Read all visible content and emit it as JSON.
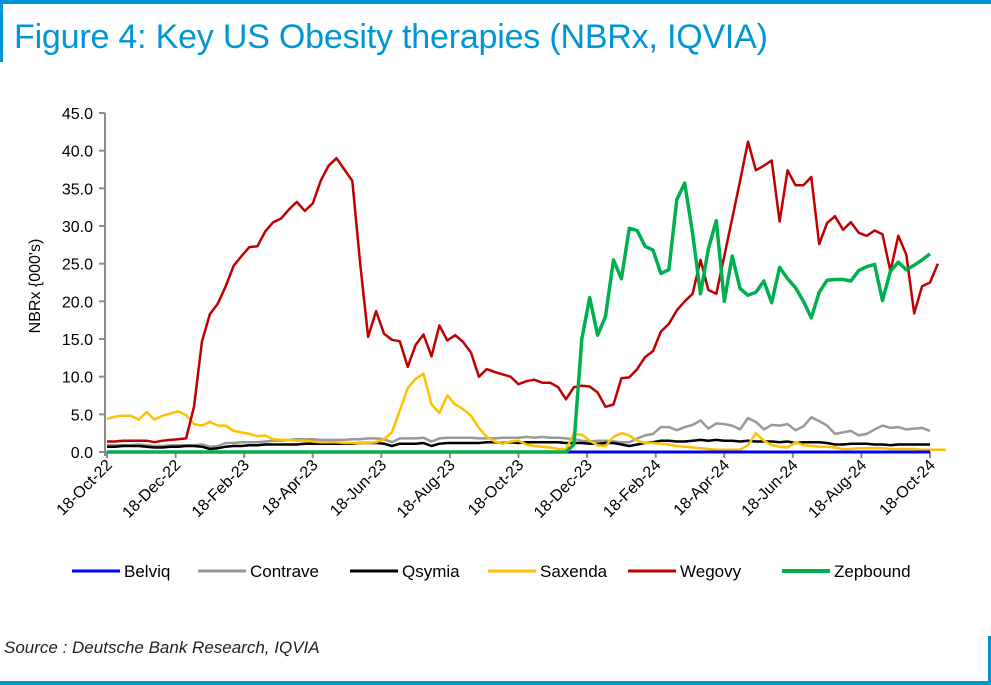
{
  "header": {
    "title": "Figure 4: Key US Obesity therapies (NBRx, IQVIA)"
  },
  "footer": {
    "source": "Source : Deutsche Bank Research, IQVIA"
  },
  "chart_data": {
    "type": "line",
    "title": "Figure 4: Key US Obesity therapies (NBRx, IQVIA)",
    "xlabel": "",
    "ylabel": "NBRx {000's)",
    "ylim": [
      0,
      45
    ],
    "yticks": [
      "0.0",
      "5.0",
      "10.0",
      "15.0",
      "20.0",
      "25.0",
      "30.0",
      "35.0",
      "40.0",
      "45.0"
    ],
    "ytick_values": [
      0,
      5,
      10,
      15,
      20,
      25,
      30,
      35,
      40,
      45
    ],
    "xtick_labels": [
      "18-Oct-22",
      "18-Dec-22",
      "18-Feb-23",
      "18-Apr-23",
      "18-Jun-23",
      "18-Aug-23",
      "18-Oct-23",
      "18-Dec-23",
      "18-Feb-24",
      "18-Apr-24",
      "18-Jun-24",
      "18-Aug-24",
      "18-Oct-24"
    ],
    "x_frequency": "weekly",
    "x_start": "18-Oct-22",
    "x_end": "18-Oct-24",
    "grid": false,
    "legend_position": "bottom",
    "series": [
      {
        "name": "Belviq",
        "color": "#0000ff",
        "values": [
          0,
          0,
          0,
          0,
          0,
          0,
          0,
          0,
          0,
          0,
          0,
          0,
          0,
          0,
          0,
          0,
          0,
          0,
          0,
          0,
          0,
          0,
          0,
          0,
          0,
          0,
          0,
          0,
          0,
          0,
          0,
          0,
          0,
          0,
          0,
          0,
          0,
          0,
          0,
          0,
          0,
          0,
          0,
          0,
          0,
          0,
          0,
          0,
          0,
          0,
          0,
          0,
          0,
          0,
          0,
          0,
          0,
          0,
          0,
          0,
          0,
          0,
          0,
          0,
          0,
          0,
          0,
          0,
          0,
          0,
          0,
          0,
          0,
          0,
          0,
          0,
          0,
          0,
          0,
          0,
          0,
          0,
          0,
          0,
          0,
          0,
          0,
          0,
          0,
          0,
          0,
          0,
          0,
          0,
          0,
          0,
          0,
          0,
          0,
          0,
          0,
          0,
          0,
          0,
          0
        ]
      },
      {
        "name": "Contrave",
        "color": "#999999",
        "values": [
          0.9,
          0.9,
          0.9,
          0.9,
          1.0,
          0.9,
          0.8,
          0.8,
          0.9,
          0.9,
          0.9,
          0.9,
          1.0,
          0.7,
          0.8,
          1.2,
          1.2,
          1.3,
          1.3,
          1.3,
          1.4,
          1.5,
          1.5,
          1.6,
          1.7,
          1.7,
          1.7,
          1.6,
          1.6,
          1.6,
          1.6,
          1.7,
          1.7,
          1.8,
          1.8,
          1.7,
          1.3,
          1.8,
          1.8,
          1.8,
          1.9,
          1.4,
          1.8,
          1.9,
          1.9,
          1.9,
          1.9,
          1.8,
          1.8,
          1.8,
          1.9,
          1.9,
          1.9,
          2.0,
          1.9,
          2.0,
          1.9,
          1.9,
          1.8,
          1.7,
          1.5,
          1.4,
          1.5,
          1.5,
          1.4,
          1.3,
          1.3,
          1.8,
          2.2,
          2.4,
          3.3,
          3.3,
          2.9,
          3.3,
          3.6,
          4.2,
          3.1,
          3.8,
          3.7,
          3.5,
          3.0,
          4.5,
          4.0,
          3.0,
          3.6,
          3.5,
          3.7,
          2.9,
          3.4,
          4.6,
          4.1,
          3.5,
          2.4,
          2.6,
          2.8,
          2.2,
          2.4,
          3.0,
          3.5,
          3.2,
          3.3,
          3.0,
          3.1,
          3.2,
          2.8
        ]
      },
      {
        "name": "Qsymia",
        "color": "#000000",
        "values": [
          0.7,
          0.7,
          0.8,
          0.8,
          0.8,
          0.7,
          0.6,
          0.6,
          0.7,
          0.7,
          0.8,
          0.8,
          0.7,
          0.4,
          0.5,
          0.7,
          0.8,
          0.8,
          0.9,
          0.9,
          1.0,
          1.0,
          1.0,
          1.0,
          1.0,
          1.1,
          1.1,
          1.1,
          1.1,
          1.1,
          1.1,
          1.1,
          1.2,
          1.2,
          1.2,
          1.1,
          0.8,
          1.1,
          1.1,
          1.1,
          1.2,
          0.8,
          1.1,
          1.2,
          1.2,
          1.2,
          1.2,
          1.2,
          1.3,
          1.3,
          1.2,
          1.3,
          1.2,
          1.3,
          1.3,
          1.3,
          1.3,
          1.3,
          1.2,
          1.2,
          1.2,
          1.1,
          1.1,
          1.2,
          1.2,
          1.0,
          0.8,
          1.0,
          1.2,
          1.3,
          1.5,
          1.5,
          1.4,
          1.4,
          1.5,
          1.6,
          1.5,
          1.6,
          1.5,
          1.5,
          1.4,
          1.5,
          1.4,
          1.4,
          1.4,
          1.3,
          1.4,
          1.2,
          1.3,
          1.3,
          1.3,
          1.2,
          1.0,
          1.0,
          1.1,
          1.1,
          1.1,
          1.0,
          1.0,
          0.9,
          1.0,
          1.0,
          1.0,
          1.0,
          1.0
        ]
      },
      {
        "name": "Saxenda",
        "color": "#ffc000",
        "values": [
          4.4,
          4.7,
          4.8,
          4.8,
          4.3,
          5.3,
          4.3,
          4.8,
          5.1,
          5.4,
          4.9,
          3.7,
          3.5,
          4.0,
          3.5,
          3.5,
          2.8,
          2.6,
          2.4,
          2.1,
          2.2,
          1.7,
          1.6,
          1.6,
          1.5,
          1.5,
          1.4,
          1.3,
          1.3,
          1.3,
          1.2,
          1.2,
          1.2,
          1.2,
          1.3,
          1.7,
          2.6,
          5.5,
          8.5,
          9.7,
          10.4,
          6.3,
          5.2,
          7.5,
          6.3,
          5.7,
          4.8,
          3.2,
          2.0,
          1.4,
          1.1,
          1.4,
          1.5,
          1.0,
          0.8,
          0.7,
          0.6,
          0.4,
          0.4,
          2.4,
          2.3,
          1.5,
          0.9,
          0.8,
          2.0,
          2.5,
          2.2,
          1.5,
          1.2,
          1.2,
          1.1,
          1.0,
          0.8,
          0.7,
          0.6,
          0.5,
          0.4,
          0.3,
          0.3,
          0.3,
          0.3,
          0.9,
          2.5,
          1.5,
          0.9,
          0.7,
          0.6,
          1.3,
          0.9,
          0.8,
          0.7,
          0.7,
          0.6,
          0.4,
          0.4,
          0.5,
          0.5,
          0.5,
          0.5,
          0.4,
          0.4,
          0.4,
          0.4,
          0.3,
          0.3,
          0.3,
          0.3
        ]
      },
      {
        "name": "Wegovy",
        "color": "#c00000",
        "values": [
          1.4,
          1.4,
          1.5,
          1.5,
          1.5,
          1.5,
          1.3,
          1.5,
          1.6,
          1.7,
          1.8,
          6.0,
          14.7,
          18.3,
          19.7,
          22.0,
          24.7,
          26.0,
          27.2,
          27.3,
          29.3,
          30.5,
          31.0,
          32.2,
          33.2,
          32.0,
          33.0,
          36.0,
          38.0,
          39.0,
          37.5,
          36.0,
          25.0,
          15.3,
          18.7,
          15.7,
          14.9,
          14.7,
          11.3,
          14.2,
          15.6,
          12.7,
          16.8,
          14.8,
          15.5,
          14.6,
          13.2,
          10.0,
          11.0,
          10.6,
          10.3,
          10.0,
          9.0,
          9.4,
          9.6,
          9.2,
          9.2,
          8.6,
          7.0,
          8.6,
          8.8,
          8.7,
          7.9,
          6.0,
          6.3,
          9.8,
          9.9,
          11.0,
          12.6,
          13.4,
          16.0,
          17.0,
          18.8,
          20.0,
          21.0,
          25.5,
          21.5,
          21.0,
          26.0,
          31.0,
          36.0,
          41.2,
          37.4,
          38.0,
          38.7,
          30.6,
          37.4,
          35.4,
          35.4,
          36.5,
          27.6,
          30.4,
          31.3,
          29.5,
          30.5,
          29.1,
          28.7,
          29.4,
          28.9,
          24.0,
          28.7,
          26.2,
          18.4,
          22.0,
          22.5,
          25.0
        ]
      },
      {
        "name": "Zepbound",
        "color": "#00b050",
        "values": [
          0,
          0,
          0,
          0,
          0,
          0,
          0,
          0,
          0,
          0,
          0,
          0,
          0,
          0,
          0,
          0,
          0,
          0,
          0,
          0,
          0,
          0,
          0,
          0,
          0,
          0,
          0,
          0,
          0,
          0,
          0,
          0,
          0,
          0,
          0,
          0,
          0,
          0,
          0,
          0,
          0,
          0,
          0,
          0,
          0,
          0,
          0,
          0,
          0,
          0,
          0,
          0,
          0,
          0,
          0,
          0,
          0,
          0,
          0,
          1.0,
          15.0,
          20.5,
          15.5,
          18.0,
          25.5,
          23.0,
          29.7,
          29.4,
          27.3,
          26.8,
          23.7,
          24.2,
          33.5,
          35.7,
          29.0,
          21.0,
          27.0,
          30.7,
          20.0,
          26.0,
          21.7,
          20.8,
          21.2,
          22.7,
          19.8,
          24.5,
          23.0,
          21.8,
          20.0,
          17.8,
          21.2,
          22.8,
          22.9,
          22.9,
          22.7,
          24.1,
          24.6,
          24.9,
          20.1,
          24.0,
          25.2,
          24.2,
          24.8,
          25.5,
          26.3
        ]
      }
    ]
  }
}
